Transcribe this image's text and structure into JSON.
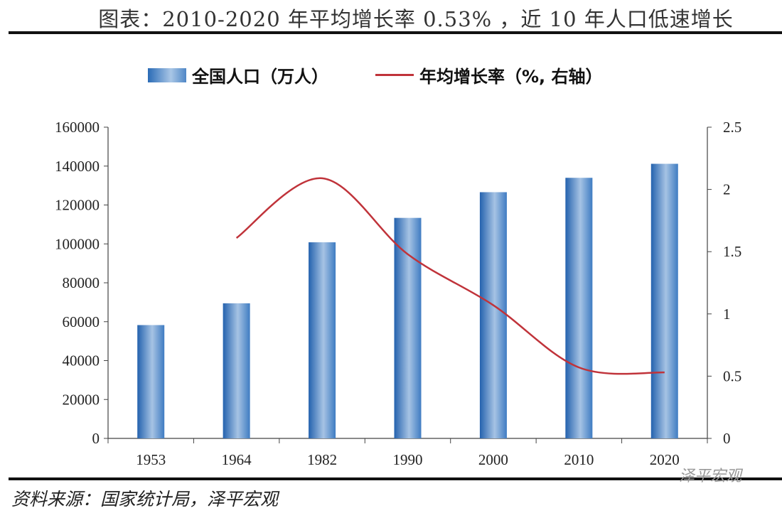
{
  "title": "图表：2010-2020 年平均增长率 0.53% ，近 10 年人口低速增长",
  "source": "资料来源：国家统计局，泽平宏观",
  "watermark": "泽平宏观",
  "chart_data": {
    "type": "bar+line",
    "title": "图表：2010-2020 年平均增长率 0.53% ，近 10 年人口低速增长",
    "categories": [
      "1953",
      "1964",
      "1982",
      "1990",
      "2000",
      "2010",
      "2020"
    ],
    "series": [
      {
        "name": "全国人口（万人）",
        "type": "bar",
        "axis": "left",
        "color": "#2a6bb6",
        "values": [
          58260,
          69458,
          100818,
          113368,
          126583,
          133972,
          141178
        ]
      },
      {
        "name": "年均增长率（%, 右轴）",
        "type": "line",
        "axis": "right",
        "color": "#c0333a",
        "values": [
          null,
          1.61,
          2.09,
          1.48,
          1.07,
          0.57,
          0.53
        ]
      }
    ],
    "y_left": {
      "lim": [
        0,
        160000
      ],
      "ticks": [
        "0",
        "20000",
        "40000",
        "60000",
        "80000",
        "100000",
        "120000",
        "140000",
        "160000"
      ]
    },
    "y_right": {
      "lim": [
        0,
        2.5
      ],
      "ticks": [
        "0",
        "0.5",
        "1",
        "1.5",
        "2",
        "2.5"
      ]
    },
    "grid": false,
    "legend": "top"
  }
}
